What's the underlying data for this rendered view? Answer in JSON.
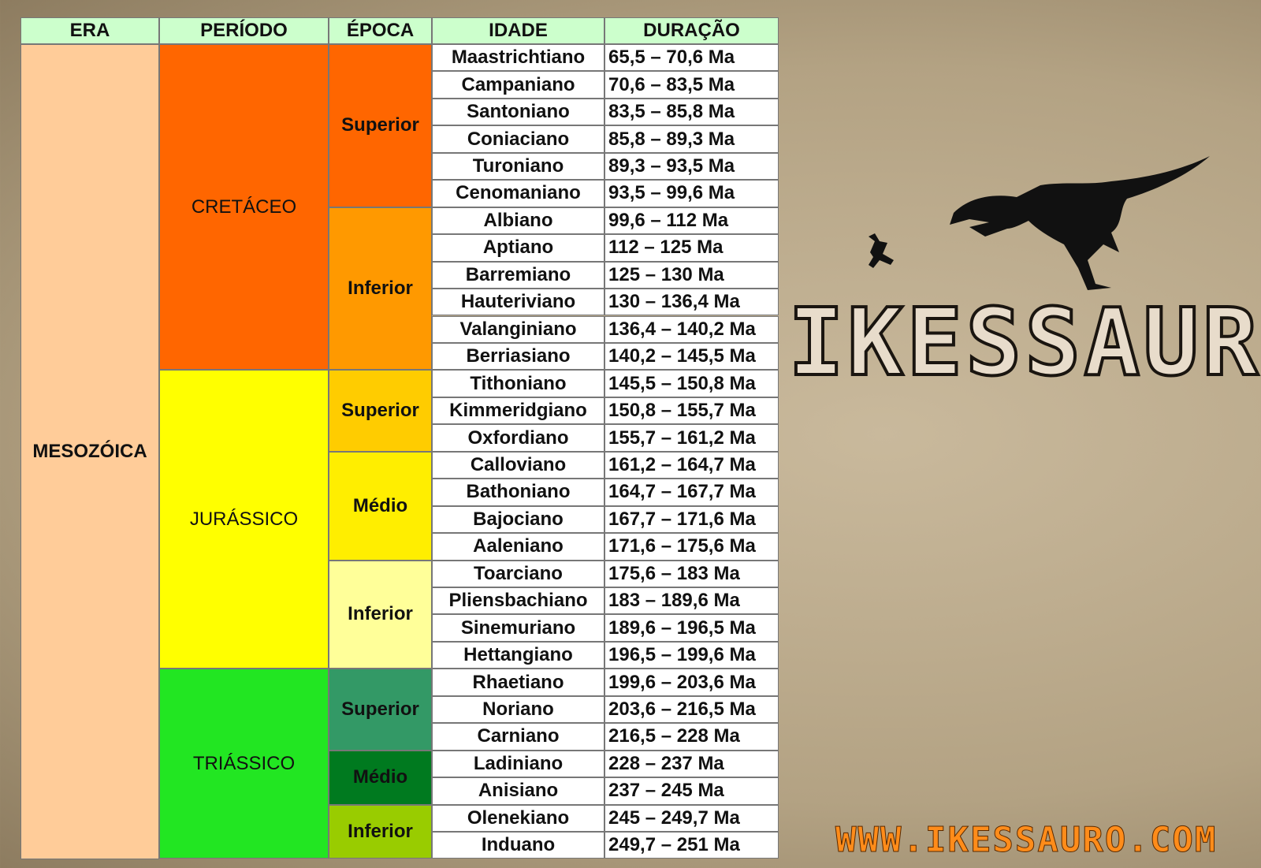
{
  "header": [
    "ERA",
    "PERÍODO",
    "ÉPOCA",
    "IDADE",
    "DURAÇÃO"
  ],
  "era": {
    "name": "MESOZÓICA",
    "color": "#ffcc99"
  },
  "periods": [
    {
      "name": "CRETÁCEO",
      "color": "#ff6600",
      "epochs": [
        {
          "name": "Superior",
          "color": "#ff6600",
          "ages": [
            {
              "name": "Maastrichtiano",
              "duration": "65,5 – 70,6 Ma"
            },
            {
              "name": "Campaniano",
              "duration": "70,6 – 83,5 Ma"
            },
            {
              "name": "Santoniano",
              "duration": "83,5 – 85,8 Ma"
            },
            {
              "name": "Coniaciano",
              "duration": "85,8 – 89,3 Ma"
            },
            {
              "name": "Turoniano",
              "duration": "89,3 – 93,5 Ma"
            },
            {
              "name": "Cenomaniano",
              "duration": "93,5 – 99,6 Ma"
            }
          ]
        },
        {
          "name": "Inferior",
          "color": "#ff9900",
          "ages": [
            {
              "name": "Albiano",
              "duration": "99,6 – 112 Ma"
            },
            {
              "name": "Aptiano",
              "duration": "112 – 125 Ma"
            },
            {
              "name": "Barremiano",
              "duration": "125 – 130 Ma"
            },
            {
              "name": "Hauteriviano",
              "duration": "130 – 136,4 Ma"
            },
            {
              "name": "Valanginiano",
              "duration": "136,4 – 140,2 Ma"
            },
            {
              "name": "Berriasiano",
              "duration": "140,2 – 145,5 Ma"
            }
          ]
        }
      ]
    },
    {
      "name": "JURÁSSICO",
      "color": "#ffff00",
      "epochs": [
        {
          "name": "Superior",
          "color": "#ffcc00",
          "ages": [
            {
              "name": "Tithoniano",
              "duration": "145,5 – 150,8 Ma"
            },
            {
              "name": "Kimmeridgiano",
              "duration": "150,8 – 155,7 Ma"
            },
            {
              "name": "Oxfordiano",
              "duration": "155,7 – 161,2 Ma"
            }
          ]
        },
        {
          "name": "Médio",
          "color": "#ffee00",
          "ages": [
            {
              "name": "Calloviano",
              "duration": "161,2 – 164,7 Ma"
            },
            {
              "name": "Bathoniano",
              "duration": "164,7 – 167,7 Ma"
            },
            {
              "name": "Bajociano",
              "duration": "167,7 – 171,6 Ma"
            },
            {
              "name": "Aaleniano",
              "duration": "171,6 – 175,6 Ma"
            }
          ]
        },
        {
          "name": "Inferior",
          "color": "#ffff99",
          "ages": [
            {
              "name": "Toarciano",
              "duration": "175,6 – 183 Ma"
            },
            {
              "name": "Pliensbachiano",
              "duration": "183 – 189,6 Ma"
            },
            {
              "name": "Sinemuriano",
              "duration": "189,6 – 196,5 Ma"
            },
            {
              "name": "Hettangiano",
              "duration": "196,5 – 199,6 Ma"
            }
          ]
        }
      ]
    },
    {
      "name": "TRIÁSSICO",
      "color": "#22e622",
      "epochs": [
        {
          "name": "Superior",
          "color": "#339966",
          "ages": [
            {
              "name": "Rhaetiano",
              "duration": "199,6 – 203,6 Ma"
            },
            {
              "name": "Noriano",
              "duration": "203,6 – 216,5 Ma"
            },
            {
              "name": "Carniano",
              "duration": "216,5 – 228 Ma"
            }
          ]
        },
        {
          "name": "Médio",
          "color": "#007a1f",
          "ages": [
            {
              "name": "Ladiniano",
              "duration": "228 – 237 Ma"
            },
            {
              "name": "Anisiano",
              "duration": "237 – 245 Ma"
            }
          ]
        },
        {
          "name": "Inferior",
          "color": "#99cc00",
          "ages": [
            {
              "name": "Olenekiano",
              "duration": "245 – 249,7 Ma"
            },
            {
              "name": "Induano",
              "duration": "249,7 – 251 Ma"
            }
          ]
        }
      ]
    }
  ],
  "logo": {
    "title": "IKESSAURO",
    "url": "WWW.IKESSAURO.COM"
  }
}
